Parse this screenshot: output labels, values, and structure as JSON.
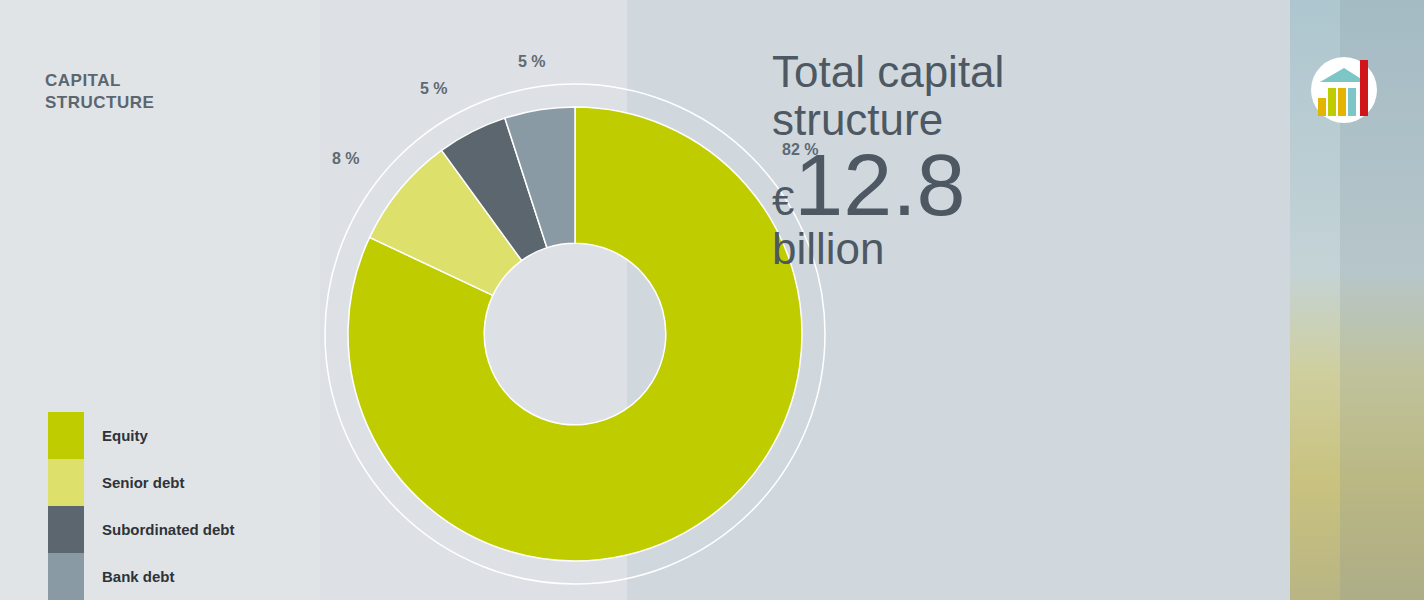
{
  "chart_data": {
    "type": "pie",
    "title": "CAPITAL STRUCTURE",
    "categories": [
      "Equity",
      "Senior debt",
      "Subordinated debt",
      "Bank debt"
    ],
    "values": [
      82,
      8,
      5,
      5
    ],
    "value_labels": [
      "82 %",
      "8 %",
      "5 %",
      "5 %"
    ],
    "colors": [
      "#bfcd00",
      "#dde06b",
      "#5c666e",
      "#8a9aa4"
    ],
    "data_labels": true,
    "legend": "lower left",
    "annotations": [
      "Total capital structure",
      "€12.8",
      "billion"
    ]
  }
}
